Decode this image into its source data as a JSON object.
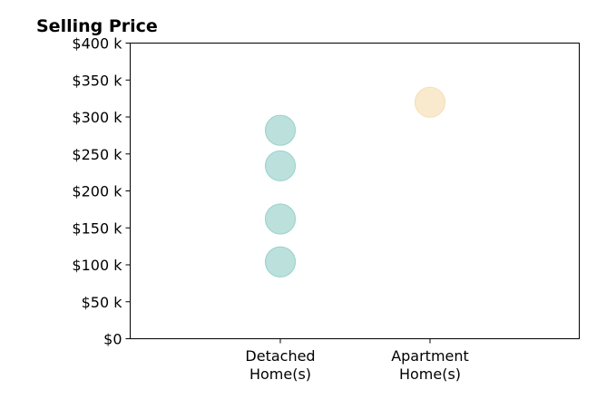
{
  "chart_data": {
    "type": "scatter",
    "title": "Selling Price",
    "xlabel": "",
    "ylabel": "",
    "categories": [
      "Detached\nHome(s)",
      "Apartment\nHome(s)"
    ],
    "ylim": [
      0,
      400
    ],
    "y_ticks": [
      0,
      50,
      100,
      150,
      200,
      250,
      300,
      350,
      400
    ],
    "y_tick_labels": [
      "$0",
      "$50 k",
      "$100 k",
      "$150 k",
      "$200 k",
      "$250 k",
      "$300 k",
      "$350 k",
      "$400 k"
    ],
    "grid": false,
    "series": [
      {
        "category": "Detached\nHome(s)",
        "color": "#9fd4cf",
        "values": [
          282,
          234,
          162,
          104
        ]
      },
      {
        "category": "Apartment\nHome(s)",
        "color": "#f6e1b9",
        "values": [
          320
        ]
      }
    ]
  }
}
